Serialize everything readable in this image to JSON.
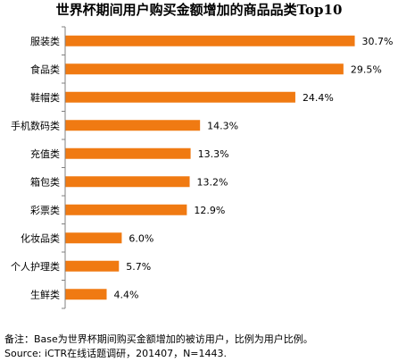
{
  "chart_data": {
    "type": "bar",
    "orientation": "horizontal",
    "title": "世界杯期间用户购买金额增加的商品品类Top10",
    "categories": [
      "服装类",
      "食品类",
      "鞋帽类",
      "手机数码类",
      "充值类",
      "箱包类",
      "彩票类",
      "化妆品类",
      "个人护理类",
      "生鲜类"
    ],
    "values": [
      30.7,
      29.5,
      24.4,
      14.3,
      13.3,
      13.2,
      12.9,
      6.0,
      5.7,
      4.4
    ],
    "value_labels": [
      "30.7%",
      "29.5%",
      "24.4%",
      "14.3%",
      "13.3%",
      "13.2%",
      "12.9%",
      "6.0%",
      "5.7%",
      "4.4%"
    ],
    "xlim": [
      0,
      35
    ],
    "bar_color": "#F07A12",
    "grid": false,
    "legend": "none"
  },
  "notes": {
    "note": "备注：Base为世界杯期间购买金额增加的被访用户，比例为用户比例。",
    "source": "Source: iCTR在线话题调研，201407，N=1443."
  }
}
